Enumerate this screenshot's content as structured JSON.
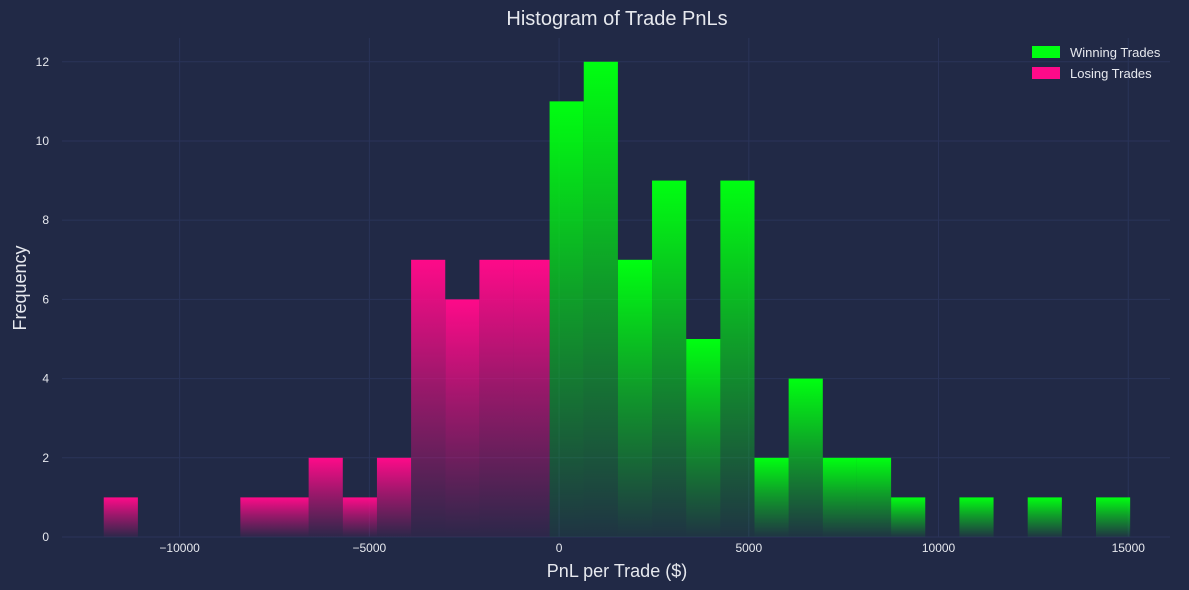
{
  "chart_data": {
    "type": "bar",
    "title": "Histogram of Trade PnLs",
    "xlabel": "PnL per Trade ($)",
    "ylabel": "Frequency",
    "xlim": [
      -13100,
      16100
    ],
    "ylim": [
      0,
      12.6
    ],
    "xticks": [
      -10000,
      -5000,
      0,
      5000,
      10000,
      15000
    ],
    "xtick_labels": [
      "−10000",
      "−5000",
      "0",
      "5000",
      "10000",
      "15000"
    ],
    "yticks": [
      0,
      2,
      4,
      6,
      8,
      10,
      12
    ],
    "grid": true,
    "legend_position": "top-right",
    "series": [
      {
        "name": "Winning Trades",
        "color": "#00FF11",
        "bins": [
          {
            "x0": -250,
            "x1": 650,
            "count": 11
          },
          {
            "x0": 650,
            "x1": 1550,
            "count": 12
          },
          {
            "x0": 1550,
            "x1": 2450,
            "count": 7
          },
          {
            "x0": 2450,
            "x1": 3350,
            "count": 9
          },
          {
            "x0": 3350,
            "x1": 4250,
            "count": 5
          },
          {
            "x0": 4250,
            "x1": 5150,
            "count": 9
          },
          {
            "x0": 5150,
            "x1": 6050,
            "count": 2
          },
          {
            "x0": 6050,
            "x1": 6950,
            "count": 4
          },
          {
            "x0": 6950,
            "x1": 7850,
            "count": 2
          },
          {
            "x0": 7850,
            "x1": 8750,
            "count": 2
          },
          {
            "x0": 8750,
            "x1": 9650,
            "count": 1
          },
          {
            "x0": 9650,
            "x1": 10550,
            "count": 0
          },
          {
            "x0": 10550,
            "x1": 11450,
            "count": 1
          },
          {
            "x0": 11450,
            "x1": 12350,
            "count": 0
          },
          {
            "x0": 12350,
            "x1": 13250,
            "count": 1
          },
          {
            "x0": 13250,
            "x1": 14150,
            "count": 0
          },
          {
            "x0": 14150,
            "x1": 15050,
            "count": 1
          }
        ]
      },
      {
        "name": "Losing Trades",
        "color": "#FE0A89",
        "bins": [
          {
            "x0": -12000,
            "x1": -11100,
            "count": 1
          },
          {
            "x0": -11100,
            "x1": -10200,
            "count": 0
          },
          {
            "x0": -10200,
            "x1": -9300,
            "count": 0
          },
          {
            "x0": -9300,
            "x1": -8400,
            "count": 0
          },
          {
            "x0": -8400,
            "x1": -7500,
            "count": 1
          },
          {
            "x0": -7500,
            "x1": -6600,
            "count": 1
          },
          {
            "x0": -6600,
            "x1": -5700,
            "count": 2
          },
          {
            "x0": -5700,
            "x1": -4800,
            "count": 1
          },
          {
            "x0": -4800,
            "x1": -3900,
            "count": 2
          },
          {
            "x0": -3900,
            "x1": -3000,
            "count": 7
          },
          {
            "x0": -3000,
            "x1": -2100,
            "count": 6
          },
          {
            "x0": -2100,
            "x1": -1200,
            "count": 7
          },
          {
            "x0": -1200,
            "x1": -250,
            "count": 7
          }
        ]
      }
    ]
  }
}
